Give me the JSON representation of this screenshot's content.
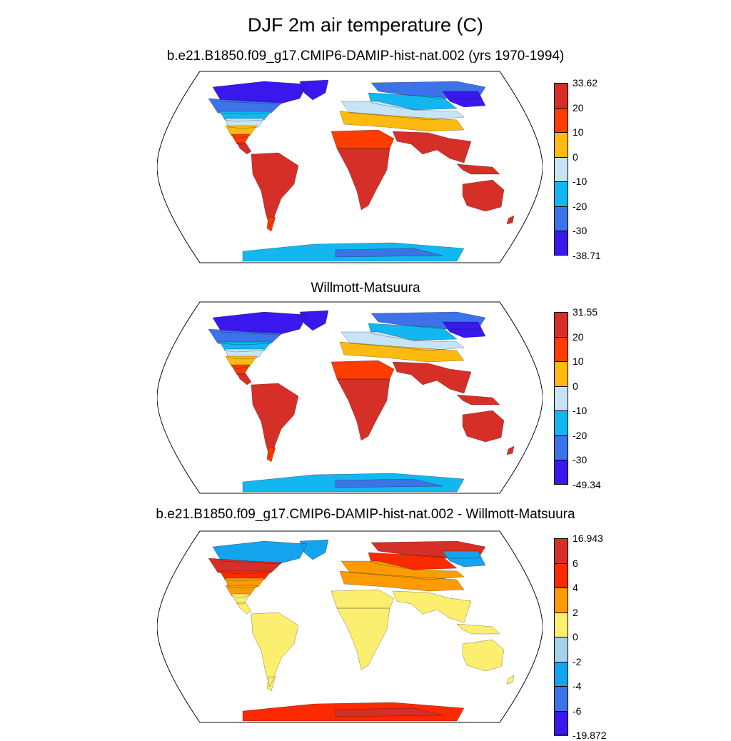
{
  "title": "DJF 2m air temperature (C)",
  "panels": [
    {
      "title": "b.e21.B1850.f09_g17.CMIP6-DAMIP-hist-nat.002 (yrs 1970-1994)",
      "colorbar": {
        "labels": [
          "33.62",
          "20",
          "10",
          "0",
          "-10",
          "-20",
          "-30",
          "-38.71"
        ],
        "colors": [
          "#d62f27",
          "#fd3c00",
          "#fdba10",
          "#c6e4f5",
          "#13b7f0",
          "#3d73e8",
          "#3a17ed"
        ]
      },
      "palette": {
        "tropics": "#d62f27",
        "warm": "#fd3c00",
        "mild": "#fdba10",
        "cool": "#c6e4f5",
        "cold": "#13b7f0",
        "vcold": "#3d73e8",
        "frigid": "#3a17ed"
      }
    },
    {
      "title": "Willmott-Matsuura",
      "colorbar": {
        "labels": [
          "31.55",
          "20",
          "10",
          "0",
          "-10",
          "-20",
          "-30",
          "-49.34"
        ],
        "colors": [
          "#d62f27",
          "#fd3c00",
          "#fdba10",
          "#c6e4f5",
          "#13b7f0",
          "#3d73e8",
          "#3a17ed"
        ]
      },
      "palette": {
        "tropics": "#d62f27",
        "warm": "#fd3c00",
        "mild": "#fdba10",
        "cool": "#c6e4f5",
        "cold": "#13b7f0",
        "vcold": "#3d73e8",
        "frigid": "#3a17ed"
      }
    },
    {
      "title": "b.e21.B1850.f09_g17.CMIP6-DAMIP-hist-nat.002 - Willmott-Matsuura",
      "colorbar": {
        "labels": [
          "16.943",
          "6",
          "4",
          "2",
          "0",
          "-2",
          "-4",
          "-6",
          "-19.872"
        ],
        "colors": [
          "#d62f27",
          "#fc2a00",
          "#fc9c00",
          "#fcee6e",
          "#a7d1ea",
          "#13a4ed",
          "#3d73e8",
          "#3a17ed"
        ]
      },
      "palette": {
        "tropics": "#fcee6e",
        "warm": "#fcee6e",
        "mild": "#fc9c00",
        "cool": "#fc9c00",
        "cold": "#fc2a00",
        "vcold": "#d62f27",
        "frigid": "#13a4ed"
      }
    }
  ]
}
